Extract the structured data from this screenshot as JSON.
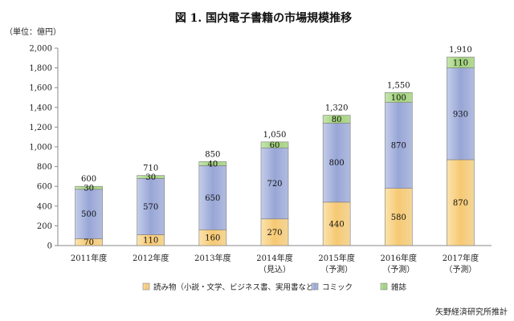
{
  "chart_data": {
    "type": "bar",
    "stacked": true,
    "title": "図 1.  国内電子書籍の市場規模推移",
    "unit_label": "（単位：億円）",
    "categories": [
      "2011年度",
      "2012年度",
      "2013年度",
      "2014年度",
      "2015年度",
      "2016年度",
      "2017年度"
    ],
    "category_sublabels": [
      "",
      "",
      "",
      "（見込）",
      "（予測）",
      "（予測）",
      "（予測）"
    ],
    "series": [
      {
        "name": "読み物（小説・文学、ビジネス書、実用書など）",
        "values": [
          70,
          110,
          160,
          270,
          440,
          580,
          870
        ],
        "color": "#f6c973"
      },
      {
        "name": "コミック",
        "values": [
          500,
          570,
          650,
          720,
          800,
          870,
          930
        ],
        "color": "#98a6d6"
      },
      {
        "name": "雑誌",
        "values": [
          30,
          30,
          40,
          60,
          80,
          100,
          110
        ],
        "color": "#9fd07a"
      }
    ],
    "totals": [
      600,
      710,
      850,
      "1,050",
      "1,320",
      "1,550",
      "1,910"
    ],
    "ylim": [
      0,
      2000
    ],
    "yticks": [
      "0",
      "200",
      "400",
      "600",
      "800",
      "1,000",
      "1,200",
      "1,400",
      "1,600",
      "1,800",
      "2,000"
    ],
    "grid": false,
    "legend_position": "bottom"
  },
  "source_note": "矢野経済研究所推計"
}
